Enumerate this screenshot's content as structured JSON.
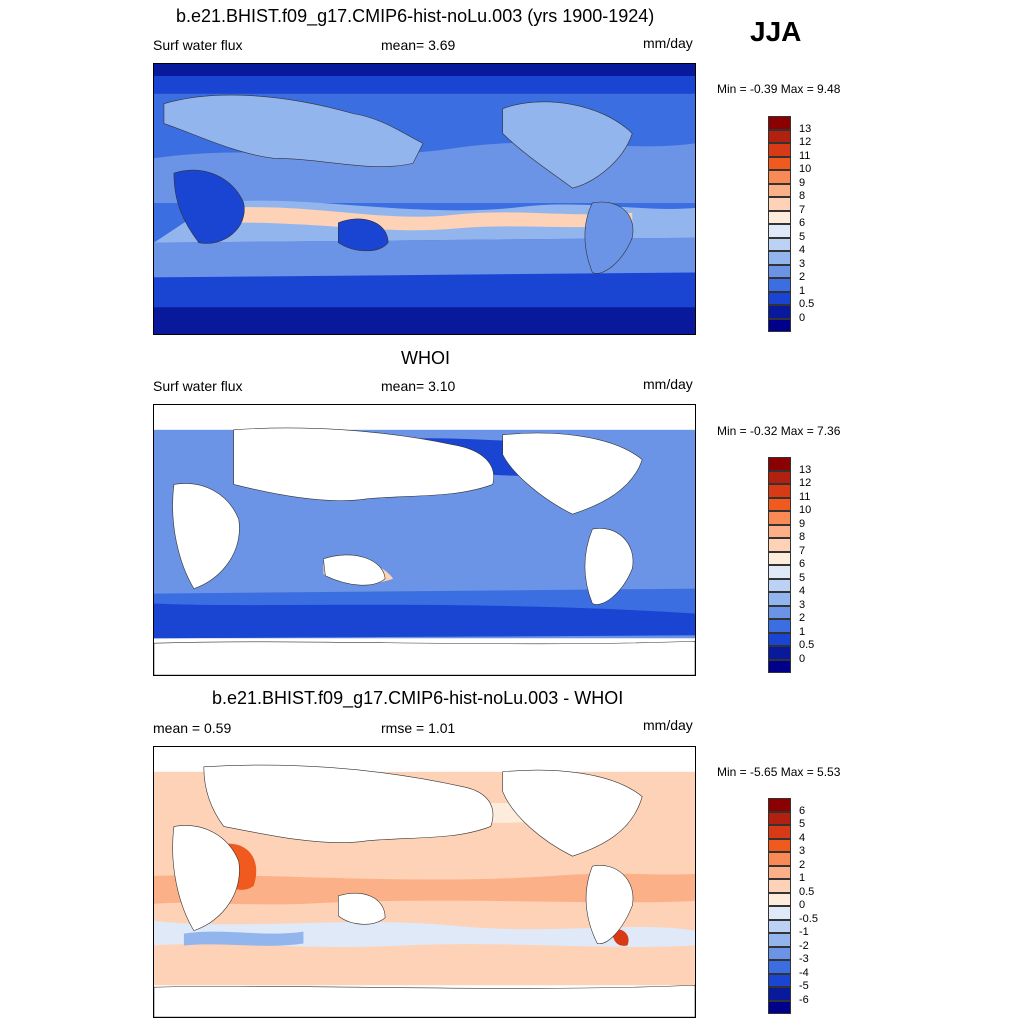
{
  "season_label": "JJA",
  "panels": [
    {
      "title": "b.e21.BHIST.f09_g17.CMIP6-hist-noLu.003 (yrs 1900-1924)",
      "left_label": "Surf water flux",
      "center_label": "mean=   3.69",
      "units": "mm/day",
      "minmax": "Min =  -0.39 Max =    9.48",
      "colorbar": {
        "labels": [
          "13",
          "12",
          "11",
          "10",
          "9",
          "8",
          "7",
          "6",
          "5",
          "4",
          "3",
          "2",
          "1",
          "0.5",
          "0"
        ],
        "colors": [
          "#8b0000",
          "#b2200f",
          "#d73a14",
          "#f05a1e",
          "#f98a55",
          "#fbb088",
          "#fdd2b6",
          "#fdebdc",
          "#dfe9f8",
          "#bcd2f5",
          "#93b5ee",
          "#6b93e6",
          "#3b6ee0",
          "#1a45d3",
          "#08199c",
          "#00008b"
        ]
      }
    },
    {
      "title": "WHOI",
      "left_label": "Surf water flux",
      "center_label": "mean=   3.10",
      "units": "mm/day",
      "minmax": "Min =  -0.32 Max =    7.36",
      "colorbar": {
        "labels": [
          "13",
          "12",
          "11",
          "10",
          "9",
          "8",
          "7",
          "6",
          "5",
          "4",
          "3",
          "2",
          "1",
          "0.5",
          "0"
        ],
        "colors": [
          "#8b0000",
          "#b2200f",
          "#d73a14",
          "#f05a1e",
          "#f98a55",
          "#fbb088",
          "#fdd2b6",
          "#fdebdc",
          "#dfe9f8",
          "#bcd2f5",
          "#93b5ee",
          "#6b93e6",
          "#3b6ee0",
          "#1a45d3",
          "#08199c",
          "#00008b"
        ]
      }
    },
    {
      "title": "b.e21.BHIST.f09_g17.CMIP6-hist-noLu.003 - WHOI",
      "left_label": "mean =    0.59",
      "center_label": "rmse =    1.01",
      "units": "mm/day",
      "minmax": "Min =  -5.65 Max =    5.53",
      "colorbar": {
        "labels": [
          "6",
          "5",
          "4",
          "3",
          "2",
          "1",
          "0.5",
          "0",
          "-0.5",
          "-1",
          "-2",
          "-3",
          "-4",
          "-5",
          "-6"
        ],
        "colors": [
          "#8b0000",
          "#b2200f",
          "#d73a14",
          "#f05a1e",
          "#f98a55",
          "#fbb088",
          "#fdd2b6",
          "#fdebdc",
          "#dfe9f8",
          "#bcd2f5",
          "#93b5ee",
          "#6b93e6",
          "#3b6ee0",
          "#1a45d3",
          "#08199c",
          "#00008b"
        ]
      }
    }
  ]
}
